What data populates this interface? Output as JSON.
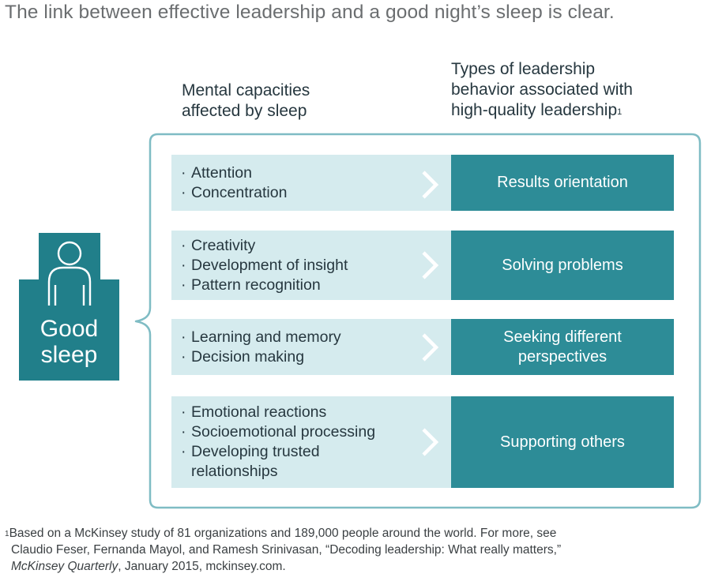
{
  "title": "The link between effective leadership and a good night’s sleep is clear.",
  "headers": {
    "left_line1": "Mental capacities",
    "left_line2": "affected by sleep",
    "right_line1": "Types of leadership",
    "right_line2": "behavior associated with",
    "right_line3": "high-quality leadership",
    "right_marker": "1"
  },
  "sleep": {
    "line1": "Good",
    "line2": "sleep",
    "icon": "person-in-bed-icon"
  },
  "rows": [
    {
      "capacities": [
        "Attention",
        "Concentration"
      ],
      "behavior_lines": [
        "Results orientation"
      ]
    },
    {
      "capacities": [
        "Creativity",
        "Development of insight",
        "Pattern recognition"
      ],
      "behavior_lines": [
        "Solving problems"
      ]
    },
    {
      "capacities": [
        "Learning and memory",
        "Decision making"
      ],
      "behavior_lines": [
        "Seeking different",
        "perspectives"
      ]
    },
    {
      "capacities": [
        "Emotional reactions",
        "Socioemotional processing",
        "Developing trusted",
        "relationships"
      ],
      "behavior_lines": [
        "Supporting others"
      ]
    }
  ],
  "bullet": "·",
  "footnote": {
    "marker": "1",
    "line1": "Based on a McKinsey study of 81 organizations and 189,000 people around the world. For more, see",
    "line2": "Claudio Feser, Fernanda Mayol, and Ramesh Srinivasan, “Decoding leadership: What really matters,”",
    "line3_italic": "McKinsey Quarterly",
    "line3_rest": ", January 2015, mckinsey.com."
  },
  "colors": {
    "dark_teal": "#217f8a",
    "box_teal": "#2d8c97",
    "light_teal": "#d5ebee",
    "frame_teal": "#7fbcc4",
    "title_gray": "#6b6e70"
  }
}
